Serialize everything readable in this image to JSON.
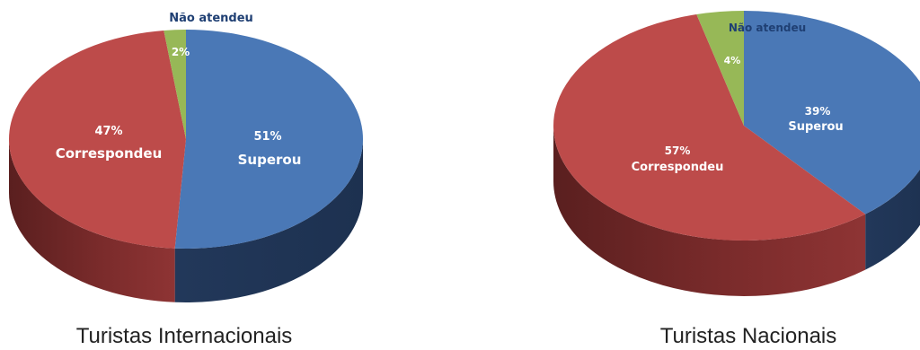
{
  "colors": {
    "superou": "#4a78b6",
    "correspondeu": "#bd4b4a",
    "nao_atendeu": "#97b857",
    "title_text": "#1f3f73"
  },
  "chart_data": [
    {
      "type": "pie",
      "title": "Turistas Internacionais",
      "slices": [
        {
          "label": "Superou",
          "value": 51,
          "value_label": "51%",
          "color": "#4a78b6"
        },
        {
          "label": "Correspondeu",
          "value": 47,
          "value_label": "47%",
          "color": "#bd4b4a"
        },
        {
          "label": "Não atendeu",
          "value": 2,
          "value_label": "2%",
          "color": "#97b857"
        }
      ]
    },
    {
      "type": "pie",
      "title": "Turistas Nacionais",
      "slices": [
        {
          "label": "Superou",
          "value": 39,
          "value_label": "39%",
          "color": "#4a78b6"
        },
        {
          "label": "Correspondeu",
          "value": 57,
          "value_label": "57%",
          "color": "#bd4b4a"
        },
        {
          "label": "Não atendeu",
          "value": 4,
          "value_label": "4%",
          "color": "#97b857"
        }
      ]
    }
  ]
}
